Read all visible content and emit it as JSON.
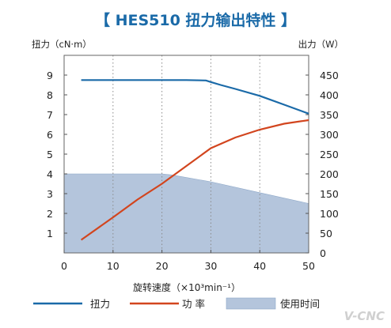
{
  "chart_data": {
    "type": "line",
    "title": "【 HES510  扭力输出特性 】",
    "xlabel": "旋转速度（×10³min⁻¹）",
    "ylabel_left": "扭力（cN·m）",
    "ylabel_right": "出力（W）",
    "x_ticks": [
      "0",
      "10",
      "20",
      "30",
      "40",
      "50"
    ],
    "y_left_ticks": [
      "1",
      "2",
      "3",
      "4",
      "5",
      "6",
      "7",
      "8",
      "9"
    ],
    "y_right_ticks": [
      "0",
      "50",
      "100",
      "150",
      "200",
      "250",
      "300",
      "350",
      "400",
      "450"
    ],
    "xlim": [
      0,
      50
    ],
    "ylim_left": [
      0,
      10
    ],
    "ylim_right": [
      0,
      500
    ],
    "grid": "vertical-dotted",
    "legend_position": "bottom",
    "series": [
      {
        "name": "扭力",
        "axis": "left",
        "color": "#1a6aa8",
        "points": [
          [
            3.5,
            8.75
          ],
          [
            10,
            8.75
          ],
          [
            20,
            8.75
          ],
          [
            25,
            8.75
          ],
          [
            29,
            8.73
          ],
          [
            30,
            8.65
          ],
          [
            32,
            8.5
          ],
          [
            35,
            8.3
          ],
          [
            40,
            7.95
          ],
          [
            45,
            7.5
          ],
          [
            50,
            7.05
          ]
        ]
      },
      {
        "name": "功 率",
        "axis": "right",
        "color": "#d2451e",
        "points": [
          [
            3.5,
            33
          ],
          [
            10,
            90
          ],
          [
            15,
            135
          ],
          [
            20,
            175
          ],
          [
            25,
            220
          ],
          [
            30,
            265
          ],
          [
            35,
            292
          ],
          [
            40,
            312
          ],
          [
            45,
            327
          ],
          [
            50,
            336
          ]
        ]
      },
      {
        "name": "使用时间",
        "type": "area",
        "axis": "left",
        "color": "#b4c5dc",
        "points": [
          [
            0,
            4
          ],
          [
            10,
            4
          ],
          [
            20,
            4
          ],
          [
            22,
            3.95
          ],
          [
            30,
            3.6
          ],
          [
            40,
            3.05
          ],
          [
            50,
            2.5
          ]
        ]
      }
    ]
  },
  "legend": {
    "torque": "扭力",
    "power": "功 率",
    "usage": "使用时间"
  },
  "watermark": "V-CNC"
}
